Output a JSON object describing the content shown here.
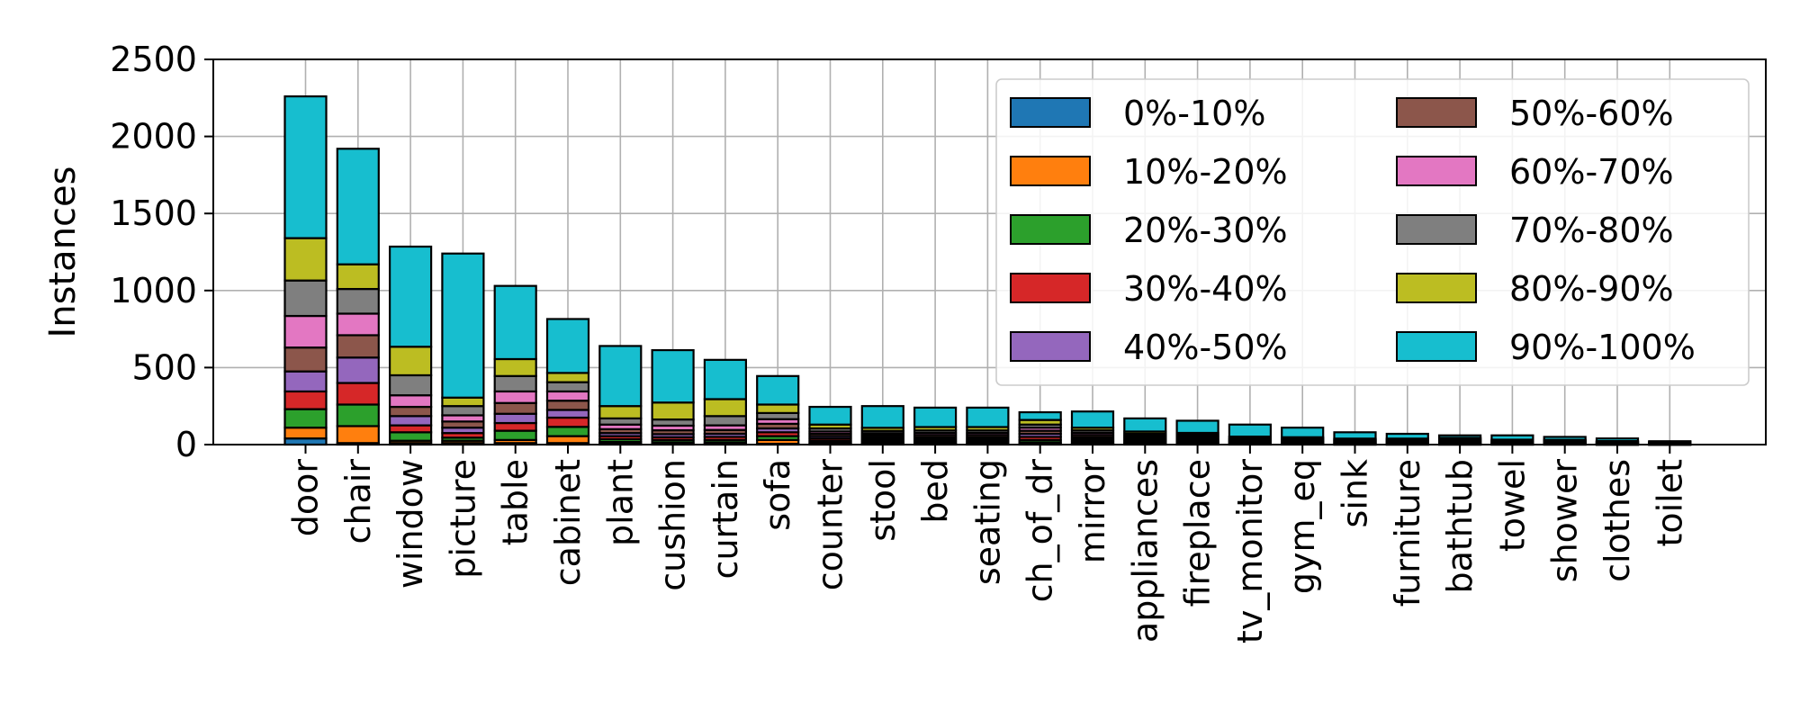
{
  "chart_data": {
    "type": "bar",
    "stacked": true,
    "title": "",
    "xlabel": "",
    "ylabel": "Instances",
    "ylim": [
      0,
      2500
    ],
    "yticks": [
      0,
      500,
      1000,
      1500,
      2000,
      2500
    ],
    "grid": true,
    "legend_position": "top-right",
    "legend_columns": 2,
    "categories": [
      "door",
      "chair",
      "window",
      "picture",
      "table",
      "cabinet",
      "plant",
      "cushion",
      "curtain",
      "sofa",
      "counter",
      "stool",
      "bed",
      "seating",
      "ch_of_dr",
      "mirror",
      "appliances",
      "fireplace",
      "tv_monitor",
      "gym_eq",
      "sink",
      "furniture",
      "bathtub",
      "towel",
      "shower",
      "clothes",
      "toilet"
    ],
    "series": [
      {
        "name": "0%-10%",
        "color": "#1f77b4",
        "values": [
          40,
          10,
          10,
          10,
          10,
          10,
          5,
          5,
          5,
          5,
          5,
          5,
          5,
          5,
          5,
          5,
          5,
          5,
          3,
          3,
          2,
          2,
          2,
          2,
          2,
          1,
          1
        ]
      },
      {
        "name": "10%-20%",
        "color": "#ff7f0e",
        "values": [
          70,
          110,
          15,
          15,
          20,
          45,
          12,
          10,
          10,
          25,
          8,
          8,
          8,
          8,
          10,
          8,
          7,
          6,
          4,
          4,
          3,
          3,
          3,
          3,
          2,
          2,
          1
        ]
      },
      {
        "name": "20%-30%",
        "color": "#2ca02c",
        "values": [
          120,
          140,
          55,
          20,
          60,
          60,
          18,
          15,
          15,
          25,
          12,
          10,
          10,
          10,
          15,
          10,
          8,
          7,
          5,
          5,
          4,
          4,
          4,
          3,
          3,
          2,
          2
        ]
      },
      {
        "name": "30%-40%",
        "color": "#d62728",
        "values": [
          115,
          140,
          45,
          30,
          50,
          60,
          20,
          18,
          20,
          25,
          15,
          12,
          12,
          12,
          20,
          12,
          9,
          8,
          5,
          5,
          4,
          4,
          5,
          3,
          3,
          2,
          2
        ]
      },
      {
        "name": "40%-50%",
        "color": "#9467bd",
        "values": [
          130,
          165,
          60,
          35,
          60,
          50,
          20,
          20,
          20,
          25,
          15,
          13,
          13,
          13,
          20,
          13,
          10,
          9,
          6,
          5,
          5,
          5,
          5,
          4,
          4,
          3,
          2
        ]
      },
      {
        "name": "50%-60%",
        "color": "#8c564b",
        "values": [
          155,
          145,
          60,
          40,
          70,
          60,
          25,
          25,
          25,
          30,
          15,
          13,
          14,
          14,
          20,
          14,
          10,
          9,
          6,
          6,
          5,
          5,
          6,
          4,
          4,
          3,
          2
        ]
      },
      {
        "name": "60%-70%",
        "color": "#e377c2",
        "values": [
          205,
          140,
          75,
          40,
          75,
          60,
          30,
          30,
          30,
          30,
          15,
          13,
          14,
          14,
          20,
          14,
          10,
          10,
          6,
          6,
          5,
          5,
          6,
          4,
          4,
          3,
          2
        ]
      },
      {
        "name": "70%-80%",
        "color": "#7f7f7f",
        "values": [
          230,
          160,
          130,
          60,
          100,
          60,
          40,
          40,
          60,
          40,
          20,
          15,
          16,
          16,
          20,
          16,
          12,
          10,
          7,
          6,
          5,
          5,
          6,
          4,
          4,
          3,
          2
        ]
      },
      {
        "name": "80%-90%",
        "color": "#bcbd22",
        "values": [
          275,
          160,
          185,
          55,
          110,
          60,
          80,
          110,
          110,
          55,
          25,
          20,
          22,
          22,
          30,
          18,
          14,
          12,
          10,
          8,
          6,
          6,
          7,
          5,
          5,
          4,
          2
        ]
      },
      {
        "name": "90%-100%",
        "color": "#17becf",
        "values": [
          920,
          750,
          650,
          935,
          475,
          350,
          390,
          340,
          255,
          185,
          115,
          141,
          126,
          126,
          50,
          105,
          85,
          79,
          78,
          62,
          41,
          31,
          16,
          28,
          19,
          17,
          6
        ]
      }
    ]
  }
}
